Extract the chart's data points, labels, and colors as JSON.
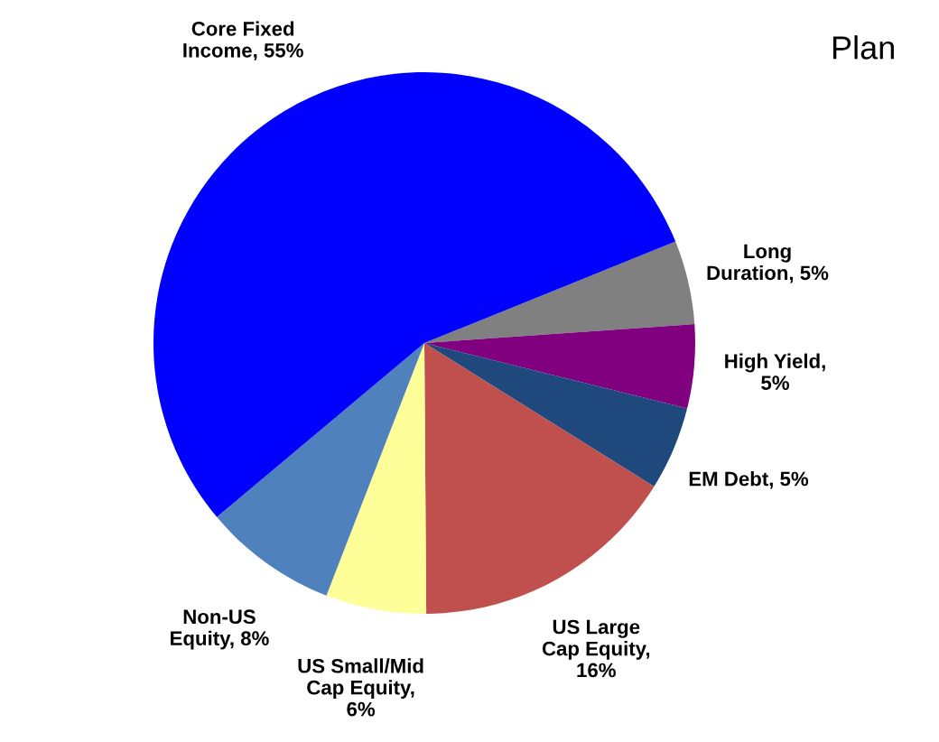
{
  "chart_data": {
    "type": "pie",
    "title": "Plan",
    "categories": [
      "Long\nDuration, 5%",
      "High Yield,\n5%",
      "EM Debt, 5%",
      "US Large\nCap Equity,\n16%",
      "US Small/Mid\nCap Equity,\n6%",
      "Non-US\nEquity, 8%",
      "Core Fixed\nIncome, 55%"
    ],
    "values": [
      5,
      5,
      5,
      16,
      6,
      8,
      55
    ],
    "colors": [
      "#808080",
      "#800080",
      "#1f497d",
      "#c0504d",
      "#ffff99",
      "#4f81bd",
      "#0000ff"
    ]
  }
}
